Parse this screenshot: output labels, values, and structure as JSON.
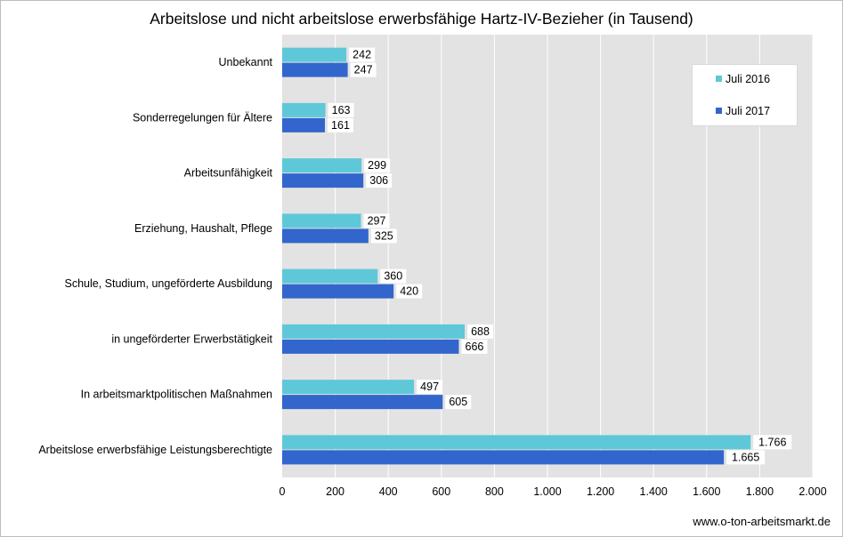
{
  "chart_data": {
    "type": "bar",
    "orientation": "horizontal",
    "title": "Arbeitslose und nicht arbeitslose erwerbsfähige Hartz-IV-Bezieher (in Tausend)",
    "categories": [
      "Unbekannt",
      "Sonderregelungen für Ältere",
      "Arbeitsunfähigkeit",
      "Erziehung, Haushalt, Pflege",
      "Schule, Studium, ungeförderte Ausbildung",
      "in ungeförderter Erwerbstätigkeit",
      "In arbeitsmarktpolitischen Maßnahmen",
      "Arbeitslose erwerbsfähige Leistungsberechtigte"
    ],
    "series": [
      {
        "name": "Juli 2016",
        "color": "#5ec8d8",
        "values": [
          242,
          163,
          299,
          297,
          360,
          688,
          497,
          1766
        ],
        "labels": [
          "242",
          "163",
          "299",
          "297",
          "360",
          "688",
          "497",
          "1.766"
        ]
      },
      {
        "name": "Juli 2017",
        "color": "#3366cc",
        "values": [
          247,
          161,
          306,
          325,
          420,
          666,
          605,
          1665
        ],
        "labels": [
          "247",
          "161",
          "306",
          "325",
          "420",
          "666",
          "605",
          "1.665"
        ]
      }
    ],
    "xlim": [
      0,
      2000
    ],
    "xticks": [
      0,
      200,
      400,
      600,
      800,
      1000,
      1200,
      1400,
      1600,
      1800,
      2000
    ],
    "xtick_labels": [
      "0",
      "200",
      "400",
      "600",
      "800",
      "1.000",
      "1.200",
      "1.400",
      "1.600",
      "1.800",
      "2.000"
    ],
    "grid": "vertical",
    "legend_position": "top-right",
    "plot_background": "#e3e3e3",
    "gridline_color": "#ffffff"
  },
  "footer": {
    "source": "www.o-ton-arbeitsmarkt.de"
  }
}
